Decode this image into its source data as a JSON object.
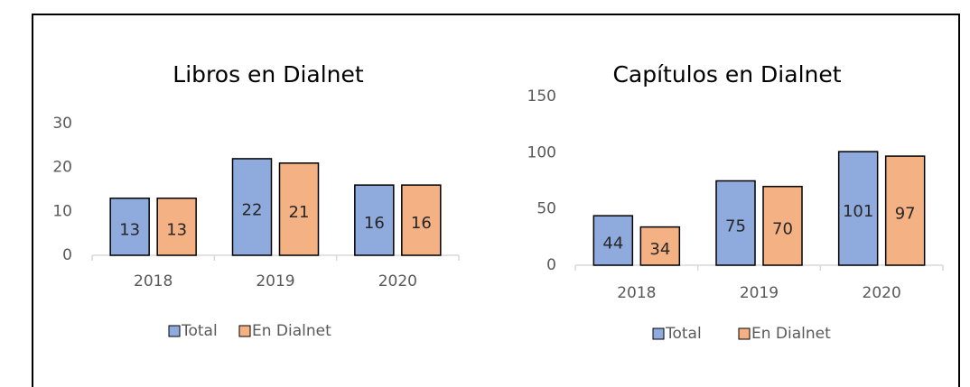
{
  "chart_data": [
    {
      "type": "bar",
      "title": "Libros en Dialnet",
      "categories": [
        "2018",
        "2019",
        "2020"
      ],
      "series": [
        {
          "name": "Total",
          "color": "#8faadc",
          "values": [
            13,
            22,
            16
          ]
        },
        {
          "name": "En Dialnet",
          "color": "#f4b183",
          "values": [
            13,
            21,
            16
          ]
        }
      ],
      "ylim": [
        0,
        30
      ],
      "yticks": [
        0,
        10,
        20,
        30
      ],
      "grid": false,
      "legend": "bottom"
    },
    {
      "type": "bar",
      "title": "Capítulos en Dialnet",
      "categories": [
        "2018",
        "2019",
        "2020"
      ],
      "series": [
        {
          "name": "Total",
          "color": "#8faadc",
          "values": [
            44,
            75,
            101
          ]
        },
        {
          "name": "En Dialnet",
          "color": "#f4b183",
          "values": [
            34,
            70,
            97
          ]
        }
      ],
      "ylim": [
        0,
        150
      ],
      "yticks": [
        0,
        50,
        100,
        150
      ],
      "grid": false,
      "legend": "bottom"
    }
  ]
}
